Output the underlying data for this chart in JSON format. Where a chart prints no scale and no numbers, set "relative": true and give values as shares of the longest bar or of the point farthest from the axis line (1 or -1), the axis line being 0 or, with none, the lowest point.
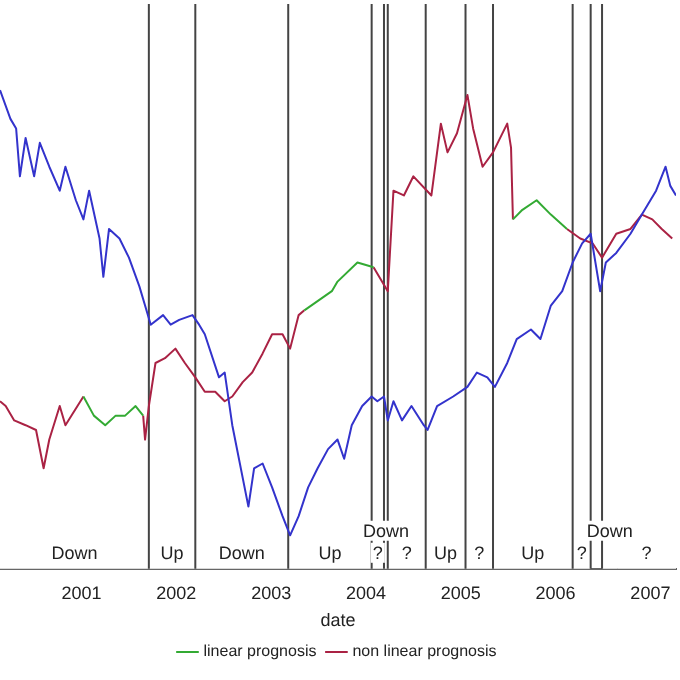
{
  "chart_data": {
    "type": "line",
    "relative": true,
    "xlabel": "date",
    "xlim": [
      2000.14,
      2007.27
    ],
    "xticks": [
      2001,
      2002,
      2003,
      2004,
      2005,
      2006,
      2007
    ],
    "grid": false,
    "legend": "bottom",
    "marker": "none",
    "line_style": "solid",
    "series": [
      {
        "color": "#3333cc",
        "x": [
          2000.14,
          2000.25,
          2000.31,
          2000.35,
          2000.41,
          2000.5,
          2000.56,
          2000.66,
          2000.77,
          2000.83,
          2000.94,
          2001.02,
          2001.08,
          2001.19,
          2001.23,
          2001.29,
          2001.4,
          2001.5,
          2001.61,
          2001.67,
          2001.73,
          2001.86,
          2001.94,
          2002.03,
          2002.17,
          2002.24,
          2002.3,
          2002.45,
          2002.51,
          2002.59,
          2002.76,
          2002.82,
          2002.91,
          2003.01,
          2003.12,
          2003.2,
          2003.29,
          2003.39,
          2003.49,
          2003.6,
          2003.7,
          2003.77,
          2003.85,
          2003.96,
          2004.06,
          2004.12,
          2004.19,
          2004.23,
          2004.29,
          2004.38,
          2004.48,
          2004.61,
          2004.65,
          2004.75,
          2004.92,
          2005.07,
          2005.17,
          2005.28,
          2005.36,
          2005.49,
          2005.59,
          2005.74,
          2005.84,
          2005.95,
          2006.07,
          2006.18,
          2006.28,
          2006.37,
          2006.47,
          2006.53,
          2006.64,
          2006.79,
          2006.91,
          2007.06,
          2007.16,
          2007.21,
          2007.27
        ],
        "values": [
          1,
          0.94,
          0.92,
          0.82,
          0.9,
          0.82,
          0.89,
          0.84,
          0.79,
          0.84,
          0.77,
          0.73,
          0.79,
          0.69,
          0.61,
          0.71,
          0.69,
          0.65,
          0.59,
          0.55,
          0.51,
          0.53,
          0.51,
          0.52,
          0.53,
          0.51,
          0.49,
          0.4,
          0.41,
          0.3,
          0.13,
          0.21,
          0.22,
          0.17,
          0.11,
          0.07,
          0.11,
          0.17,
          0.21,
          0.25,
          0.27,
          0.23,
          0.3,
          0.34,
          0.36,
          0.35,
          0.36,
          0.31,
          0.35,
          0.31,
          0.34,
          0.3,
          0.29,
          0.34,
          0.36,
          0.38,
          0.41,
          0.4,
          0.38,
          0.43,
          0.48,
          0.5,
          0.48,
          0.55,
          0.58,
          0.64,
          0.68,
          0.7,
          0.58,
          0.64,
          0.66,
          0.7,
          0.74,
          0.79,
          0.84,
          0.8,
          0.78
        ]
      },
      {
        "name": "linear prognosis",
        "color": "#33aa33",
        "x": [
          2001.02,
          2001.13,
          2001.25,
          2001.36,
          2001.46,
          2001.57,
          2001.65,
          2002.5,
          2003.35,
          2003.64,
          2003.7,
          2003.91,
          2004.08,
          2004.8,
          2005.55,
          2005.65,
          2005.8,
          2005.95,
          2006.12
        ],
        "values": [
          0.36,
          0.32,
          0.3,
          0.32,
          0.32,
          0.34,
          0.32,
          null,
          0.54,
          0.58,
          0.6,
          0.64,
          0.63,
          null,
          0.73,
          0.75,
          0.77,
          0.74,
          0.71
        ]
      },
      {
        "name": "non linear prognosis",
        "color": "#aa2244",
        "x": [
          2000.14,
          2000.2,
          2000.29,
          2000.41,
          2000.52,
          2000.6,
          2000.66,
          2000.77,
          2000.83,
          2001.02,
          2001.13,
          2001.25,
          2001.36,
          2001.46,
          2001.57,
          2001.65,
          2001.67,
          2001.71,
          2001.78,
          2001.88,
          2001.99,
          2002.09,
          2002.2,
          2002.3,
          2002.41,
          2002.51,
          2002.59,
          2002.7,
          2002.8,
          2002.91,
          2003.01,
          2003.12,
          2003.2,
          2003.29,
          2003.35,
          2003.64,
          2003.7,
          2003.91,
          2004.08,
          2004.23,
          2004.29,
          2004.4,
          2004.5,
          2004.69,
          2004.79,
          2004.86,
          2004.96,
          2005.07,
          2005.13,
          2005.23,
          2005.34,
          2005.49,
          2005.53,
          2005.55,
          2005.65,
          2005.8,
          2005.95,
          2006.12,
          2006.26,
          2006.39,
          2006.49,
          2006.64,
          2006.79,
          2006.91,
          2007.02,
          2007.12,
          2007.23
        ],
        "values": [
          0.35,
          0.34,
          0.31,
          0.3,
          0.29,
          0.21,
          0.27,
          0.34,
          0.3,
          0.36,
          null,
          null,
          null,
          null,
          null,
          0.32,
          0.27,
          0.34,
          0.43,
          0.44,
          0.46,
          0.43,
          0.4,
          0.37,
          0.37,
          0.35,
          0.36,
          0.39,
          0.41,
          0.45,
          0.49,
          0.49,
          0.46,
          0.53,
          0.54,
          null,
          null,
          null,
          0.63,
          0.58,
          0.79,
          0.78,
          0.82,
          0.78,
          0.93,
          0.87,
          0.91,
          0.99,
          0.92,
          0.84,
          0.87,
          0.93,
          0.88,
          0.73,
          null,
          null,
          null,
          0.71,
          0.69,
          0.68,
          0.65,
          0.7,
          0.71,
          0.74,
          0.73,
          0.71,
          0.69
        ]
      }
    ],
    "ref_lines": [
      {
        "axis": "x",
        "value": 2001.71,
        "color": "#444444"
      },
      {
        "axis": "x",
        "value": 2002.2,
        "color": "#444444"
      },
      {
        "axis": "x",
        "value": 2003.18,
        "color": "#444444"
      },
      {
        "axis": "x",
        "value": 2004.06,
        "color": "#444444"
      },
      {
        "axis": "x",
        "value": 2004.19,
        "color": "#444444"
      },
      {
        "axis": "x",
        "value": 2004.23,
        "color": "#444444"
      },
      {
        "axis": "x",
        "value": 2004.63,
        "color": "#444444"
      },
      {
        "axis": "x",
        "value": 2005.05,
        "color": "#444444"
      },
      {
        "axis": "x",
        "value": 2005.34,
        "color": "#444444"
      },
      {
        "axis": "x",
        "value": 2006.18,
        "color": "#444444"
      },
      {
        "axis": "x",
        "value": 2006.37,
        "color": "#444444"
      },
      {
        "axis": "x",
        "value": 2006.49,
        "color": "#444444"
      }
    ],
    "bands": [
      {
        "axis": "x",
        "from": 2000.14,
        "to": 2001.71,
        "label": "Down",
        "color": "#ffffff"
      },
      {
        "axis": "x",
        "from": 2001.71,
        "to": 2002.2,
        "label": "Up",
        "color": "#ffffff"
      },
      {
        "axis": "x",
        "from": 2002.2,
        "to": 2003.18,
        "label": "Down",
        "color": "#ffffff"
      },
      {
        "axis": "x",
        "from": 2003.18,
        "to": 2004.06,
        "label": "Up",
        "color": "#ffffff"
      },
      {
        "axis": "x",
        "from": 2004.06,
        "to": 2004.19,
        "label": "?",
        "color": "#ffffff"
      },
      {
        "axis": "x",
        "from": 2004.19,
        "to": 2004.23,
        "label": "Down",
        "color": "#ffffff"
      },
      {
        "axis": "x",
        "from": 2004.23,
        "to": 2004.63,
        "label": "?",
        "color": "#ffffff"
      },
      {
        "axis": "x",
        "from": 2004.63,
        "to": 2005.05,
        "label": "Up",
        "color": "#ffffff"
      },
      {
        "axis": "x",
        "from": 2005.05,
        "to": 2005.34,
        "label": "?",
        "color": "#ffffff"
      },
      {
        "axis": "x",
        "from": 2005.34,
        "to": 2006.18,
        "label": "Up",
        "color": "#ffffff"
      },
      {
        "axis": "x",
        "from": 2006.18,
        "to": 2006.37,
        "label": "?",
        "color": "#ffffff"
      },
      {
        "axis": "x",
        "from": 2006.49,
        "to": 2006.65,
        "label": "Down",
        "color": "#ffffff"
      },
      {
        "axis": "x",
        "from": 2006.65,
        "to": 2007.27,
        "label": "?",
        "color": "#ffffff"
      }
    ]
  }
}
